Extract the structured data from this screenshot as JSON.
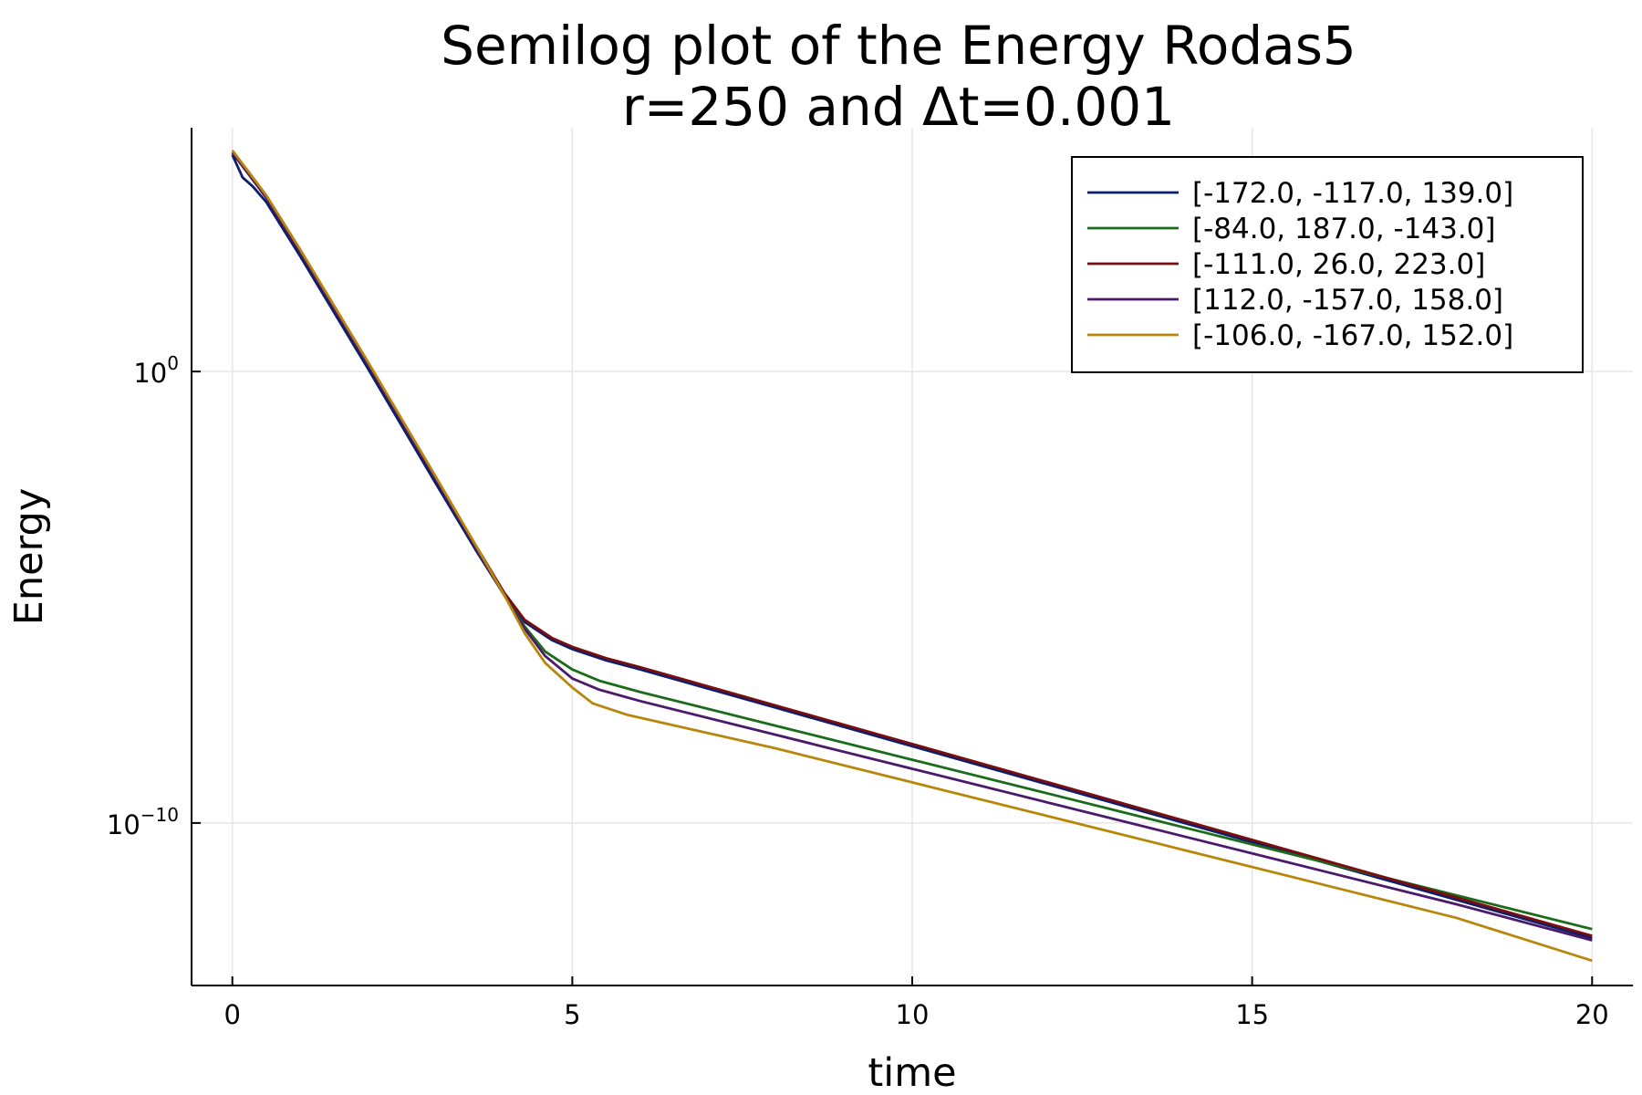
{
  "chart_data": {
    "type": "line",
    "title": "Semilog plot of the Energy Rodas5",
    "subtitle": "r=250 and Δt=0.001",
    "xlabel": "time",
    "ylabel": "Energy",
    "xlim": [
      -0.6,
      20.6
    ],
    "ylim_log10": [
      -13.6,
      5.4
    ],
    "yscale": "log",
    "grid": true,
    "legend_position": "top-right",
    "x_ticks": [
      0,
      5,
      10,
      15,
      20
    ],
    "x_tick_labels": [
      "0",
      "5",
      "10",
      "15",
      "20"
    ],
    "y_ticks": [
      {
        "base": "10",
        "exp": "0",
        "log10": 0
      },
      {
        "base": "10",
        "exp": "−10",
        "log10": -10
      }
    ],
    "series": [
      {
        "name": "[-172.0, -117.0, 139.0]",
        "color": "#0c1e6c",
        "x": [
          0,
          0.15,
          0.3,
          0.5,
          1,
          2,
          3,
          3.6,
          4,
          4.3,
          4.7,
          5,
          5.5,
          6,
          8,
          10,
          12,
          14,
          16,
          18,
          20
        ],
        "log10y": [
          4.8,
          4.3,
          4.1,
          3.75,
          2.55,
          0.05,
          -2.5,
          -4.0,
          -4.95,
          -5.55,
          -5.95,
          -6.15,
          -6.4,
          -6.6,
          -7.45,
          -8.3,
          -9.15,
          -10.0,
          -10.85,
          -11.7,
          -12.55
        ]
      },
      {
        "name": "[-84.0, 187.0, -143.0]",
        "color": "#1a6b1a",
        "x": [
          0,
          0.3,
          0.5,
          1,
          2,
          3,
          3.6,
          4,
          4.3,
          4.6,
          5,
          5.4,
          6,
          8,
          10,
          12,
          14,
          16,
          18,
          20
        ],
        "log10y": [
          4.85,
          4.25,
          3.85,
          2.65,
          0.15,
          -2.4,
          -3.95,
          -4.95,
          -5.65,
          -6.2,
          -6.6,
          -6.85,
          -7.1,
          -7.85,
          -8.6,
          -9.35,
          -10.1,
          -10.85,
          -11.6,
          -12.35
        ]
      },
      {
        "name": "[-111.0, 26.0, 223.0]",
        "color": "#7a0d0d",
        "x": [
          0,
          0.3,
          0.5,
          1,
          2,
          3,
          3.6,
          4,
          4.3,
          4.7,
          5,
          5.5,
          6,
          8,
          10,
          12,
          14,
          16,
          18,
          20
        ],
        "log10y": [
          4.85,
          4.25,
          3.85,
          2.65,
          0.15,
          -2.4,
          -3.9,
          -4.9,
          -5.5,
          -5.9,
          -6.1,
          -6.35,
          -6.55,
          -7.4,
          -8.25,
          -9.1,
          -9.95,
          -10.8,
          -11.65,
          -12.5
        ]
      },
      {
        "name": "[112.0, -157.0, 158.0]",
        "color": "#4b1a6b",
        "x": [
          0,
          0.3,
          0.5,
          1,
          2,
          3,
          3.6,
          4,
          4.3,
          4.6,
          5,
          5.4,
          6,
          8,
          10,
          12,
          14,
          16,
          18,
          20
        ],
        "log10y": [
          4.85,
          4.25,
          3.85,
          2.65,
          0.15,
          -2.4,
          -3.95,
          -4.95,
          -5.7,
          -6.3,
          -6.8,
          -7.05,
          -7.3,
          -8.05,
          -8.8,
          -9.55,
          -10.3,
          -11.05,
          -11.8,
          -12.6
        ]
      },
      {
        "name": "[-106.0, -167.0, 152.0]",
        "color": "#b8860b",
        "x": [
          0,
          0.3,
          0.5,
          1,
          2,
          3,
          3.6,
          4,
          4.3,
          4.6,
          5,
          5.3,
          5.8,
          8,
          10,
          12,
          14,
          16,
          18,
          20
        ],
        "log10y": [
          4.9,
          4.3,
          3.9,
          2.7,
          0.2,
          -2.35,
          -3.9,
          -4.95,
          -5.8,
          -6.45,
          -7.0,
          -7.35,
          -7.6,
          -8.35,
          -9.1,
          -9.85,
          -10.6,
          -11.35,
          -12.1,
          -13.05
        ]
      }
    ]
  }
}
